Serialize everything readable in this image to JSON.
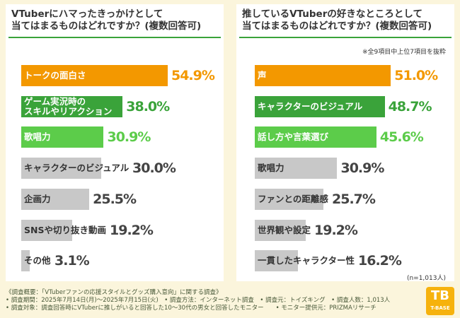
{
  "chart_data": [
    {
      "type": "bar",
      "title": [
        "VTuberにハマったきっかけとして",
        "当てはまるものはどれですか？(複数回答可)"
      ],
      "categories": [
        "トークの面白さ",
        "ゲーム実況時の\nスキルやリアクション",
        "歌唱力",
        "キャラクターのビジュアル",
        "企画力",
        "SNSや切り抜き動画",
        "その他"
      ],
      "values": [
        54.9,
        38.0,
        30.9,
        30.0,
        25.5,
        19.2,
        3.1
      ],
      "value_labels": [
        "54.9%",
        "38.0%",
        "30.9%",
        "30.0%",
        "25.5%",
        "19.2%",
        "3.1%"
      ],
      "colors": [
        "#f39800",
        "#3aa33a",
        "#5ccc4a",
        "#c8c8c8",
        "#c8c8c8",
        "#c8c8c8",
        "#c8c8c8"
      ]
    },
    {
      "type": "bar",
      "title": [
        "推しているVTuberの好きなところとして",
        "当てはまるものはどれですか？(複数回答可)"
      ],
      "note": "※全9項目中上位7項目を抜粋",
      "sample": "(n=1,013人)",
      "categories": [
        "声",
        "キャラクターのビジュアル",
        "話し方や言葉選び",
        "歌唱力",
        "ファンとの距離感",
        "世界観や設定",
        "一貫したキャラクター性"
      ],
      "values": [
        51.0,
        48.7,
        45.6,
        30.9,
        25.7,
        19.2,
        16.2
      ],
      "value_labels": [
        "51.0%",
        "48.7%",
        "45.6%",
        "30.9%",
        "25.7%",
        "19.2%",
        "16.2%"
      ],
      "colors": [
        "#f39800",
        "#3aa33a",
        "#5ccc4a",
        "#c8c8c8",
        "#c8c8c8",
        "#c8c8c8",
        "#c8c8c8"
      ]
    }
  ],
  "footer": [
    "《調査概要：「VTuberファンの応援スタイルとグッズ購入意向」に関する調査》",
    "• 調査期間：2025年7月14日(月)～2025年7月15日(火)　• 調査方法：インターネット調査　• 調査元：トイズキング　• 調査人数：1,013人",
    "• 調査対象：調査回答時にVTuberに推しがいると回答した10～30代の男女と回答したモニター　　• モニター提供元：PRIZMAリサーチ"
  ],
  "logo": "T-BASE"
}
